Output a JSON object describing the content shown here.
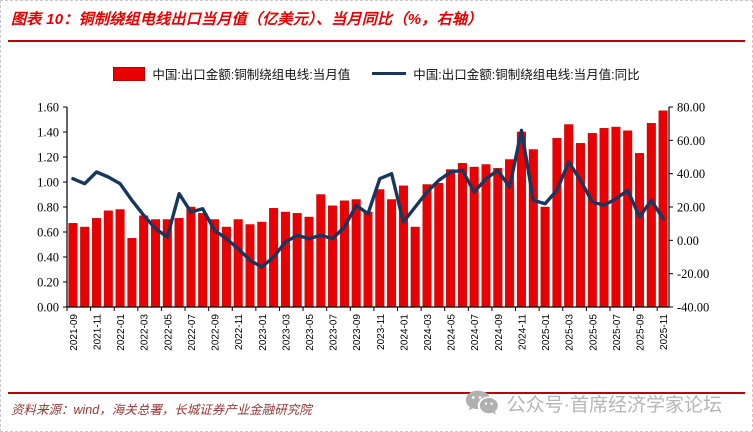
{
  "title": "图表 10：铜制绕组电线出口当月值（亿美元）、当月同比（%，右轴）",
  "legend": [
    {
      "label": "中国:出口金额:铜制绕组电线:当月值",
      "type": "bar",
      "color": "#e90000"
    },
    {
      "label": "中国:出口金额:铜制绕组电线:当月值:同比",
      "type": "line",
      "color": "#17375e"
    }
  ],
  "footer": {
    "source": "资料来源：wind，海关总署，长城证券产业金融研究院",
    "watermark": "公众号·首席经济学家论坛",
    "watermark_icon": "wechat-icon"
  },
  "colors": {
    "title_red": "#e60000",
    "rule_red": "#c00000",
    "bar_red": "#e90000",
    "line_navy": "#17375e",
    "source_maroon": "#953735",
    "watermark_gray": "#b5b5b5"
  },
  "chart_data": {
    "type": "bar",
    "categories": [
      "2021-09",
      "2021-10",
      "2021-11",
      "2021-12",
      "2022-01",
      "2022-02",
      "2022-03",
      "2022-04",
      "2022-05",
      "2022-06",
      "2022-07",
      "2022-08",
      "2022-09",
      "2022-10",
      "2022-11",
      "2022-12",
      "2023-01",
      "2023-02",
      "2023-03",
      "2023-04",
      "2023-05",
      "2023-06",
      "2023-07",
      "2023-08",
      "2023-09",
      "2023-10",
      "2023-11",
      "2023-12",
      "2024-01",
      "2024-02",
      "2024-03",
      "2024-04",
      "2024-05",
      "2024-06",
      "2024-07",
      "2024-08",
      "2024-09",
      "2024-10",
      "2024-11",
      "2024-12",
      "2025-01",
      "2025-02",
      "2025-03",
      "2025-04",
      "2025-05",
      "2025-06",
      "2025-07",
      "2025-08",
      "2025-09",
      "2025-10",
      "2025-11"
    ],
    "series": [
      {
        "name": "中国:出口金额:铜制绕组电线:当月值",
        "type": "bar",
        "axis": "left",
        "color": "#e90000",
        "values": [
          0.67,
          0.64,
          0.71,
          0.77,
          0.78,
          0.55,
          0.73,
          0.7,
          0.7,
          0.71,
          0.8,
          0.75,
          0.7,
          0.64,
          0.7,
          0.66,
          0.68,
          0.79,
          0.76,
          0.75,
          0.72,
          0.9,
          0.81,
          0.85,
          0.86,
          0.76,
          0.94,
          0.86,
          0.97,
          0.64,
          0.98,
          0.99,
          1.1,
          1.15,
          1.12,
          1.14,
          1.11,
          1.18,
          1.4,
          1.26,
          0.8,
          1.35,
          1.46,
          1.31,
          1.39,
          1.43,
          1.44,
          1.41,
          1.23,
          1.47,
          1.57
        ]
      },
      {
        "name": "中国:出口金额:铜制绕组电线:当月值:同比",
        "type": "line",
        "axis": "right",
        "color": "#17375e",
        "values": [
          37,
          34,
          41,
          38,
          34,
          24,
          15,
          7,
          2,
          28,
          17,
          19,
          6,
          1,
          -5,
          -12,
          -16,
          -10,
          -1,
          3,
          1,
          3,
          1,
          8,
          21,
          16,
          37,
          40,
          11,
          20,
          29,
          36,
          41,
          42,
          29,
          37,
          42,
          32,
          66,
          24,
          22,
          30,
          47,
          36,
          23,
          21,
          25,
          30,
          14,
          24,
          13
        ]
      }
    ],
    "left_axis": {
      "min": 0,
      "max": 1.6,
      "step": 0.2,
      "decimals": 2
    },
    "right_axis": {
      "min": -40,
      "max": 80,
      "step": 20,
      "decimals": 2
    },
    "x_label_every": 2,
    "grid": false,
    "legend_position": "top"
  }
}
